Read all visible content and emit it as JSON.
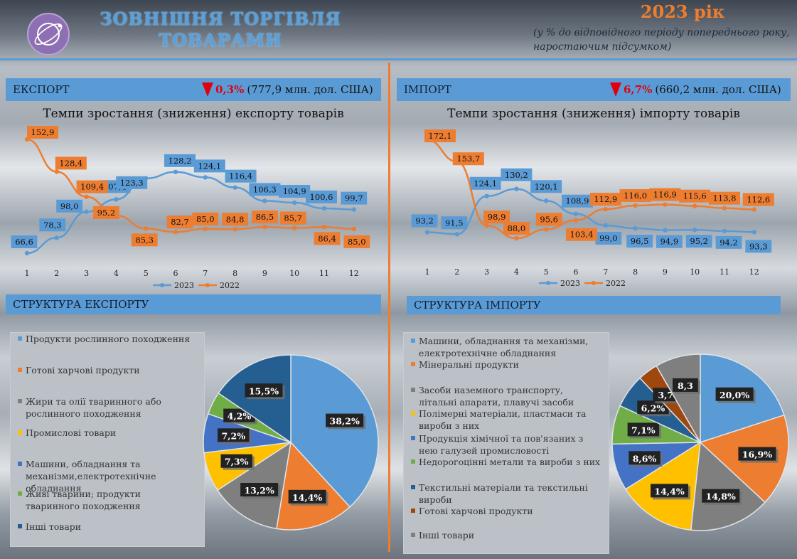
{
  "header": {
    "title_line1": "ЗОВНІШНЯ ТОРГІВЛЯ",
    "title_line2": "ТОВАРАМИ",
    "year": "2023 рік",
    "subtitle_line1": "(у % до відповідного періоду попереднього року,",
    "subtitle_line2": "наростаючим підсумком)"
  },
  "export": {
    "bar_label": "ЕКСПОРТ",
    "change_pct": "0,3%",
    "change_abs": "(777,9 млн. дол. США)",
    "chart_title": "Темпи зростання (зниження) експорту товарів",
    "structure_label": "СТРУКТУРА ЕКСПОРТУ"
  },
  "import": {
    "bar_label": "ІМПОРТ",
    "change_pct": "6,7%",
    "change_abs": "(660,2 млн. дол. США)",
    "chart_title": "Темпи зростання (зниження) імпорту товарів",
    "structure_label": "СТРУКТУРА  ІМПОРТУ"
  },
  "colors": {
    "blue": "#5b9bd5",
    "orange": "#ed7d31",
    "gray": "#7f7f7f",
    "yellow": "#ffc000",
    "royal": "#4472c4",
    "green": "#70ad47",
    "navy": "#255e91",
    "brown": "#9e480e",
    "down": "#e00010"
  },
  "chart_data": [
    {
      "type": "line",
      "title": "Темпи зростання (зниження) експорту товарів",
      "x": [
        "1",
        "2",
        "3",
        "4",
        "5",
        "6",
        "7",
        "8",
        "9",
        "10",
        "11",
        "12"
      ],
      "series": [
        {
          "name": "2023",
          "values": [
            66.6,
            78.3,
            98.0,
            107.4,
            123.3,
            128.2,
            124.1,
            116.4,
            106.3,
            104.9,
            100.6,
            99.7
          ],
          "labels": [
            "66,6",
            "78,3",
            "98,0",
            "107,4",
            "123,3",
            "128,2",
            "124,1",
            "116,4",
            "106,3",
            "104,9",
            "100,6",
            "99,7"
          ]
        },
        {
          "name": "2022",
          "values": [
            152.9,
            128.4,
            109.4,
            95.2,
            85.3,
            82.7,
            85.0,
            84.8,
            86.5,
            85.7,
            86.4,
            85.0
          ],
          "labels": [
            "152,9",
            "128,4",
            "109,4",
            "95,2",
            "85,3",
            "82,7",
            "85,0",
            "84,8",
            "86,5",
            "85,7",
            "86,4",
            "85,0"
          ]
        }
      ]
    },
    {
      "type": "line",
      "title": "Темпи зростання (зниження) імпорту товарів",
      "x": [
        "1",
        "2",
        "3",
        "4",
        "5",
        "6",
        "7",
        "8",
        "9",
        "10",
        "11",
        "12"
      ],
      "series": [
        {
          "name": "2023",
          "values": [
            93.2,
            91.5,
            124.1,
            130.2,
            120.1,
            108.9,
            99.0,
            96.5,
            94.9,
            95.2,
            94.2,
            93.3
          ],
          "labels": [
            "93,2",
            "91,5",
            "124,1",
            "130,2",
            "120,1",
            "108,9",
            "99,0",
            "96,5",
            "94,9",
            "95,2",
            "94,2",
            "93,3"
          ]
        },
        {
          "name": "2022",
          "values": [
            172.1,
            153.7,
            98.9,
            88.0,
            95.6,
            103.4,
            112.9,
            116.0,
            116.9,
            115.6,
            113.8,
            112.6
          ],
          "labels": [
            "172,1",
            "153,7",
            "98,9",
            "88,0",
            "95,6",
            "103,4",
            "112,9",
            "116,0",
            "116,9",
            "115,6",
            "113,8",
            "112,6"
          ]
        }
      ]
    },
    {
      "type": "pie",
      "title": "СТРУКТУРА ЕКСПОРТУ",
      "categories": [
        "Продукти рослинного походження",
        "Готові харчові продукти",
        "Жири та олії тваринного або рослинного походження",
        "Промислові товари",
        "Машини, обладнання та механізми,електротехнічне обладнання",
        "Живі тварини; продукти тваринного походження",
        "Інші товари"
      ],
      "values": [
        38.2,
        14.4,
        13.2,
        7.3,
        7.2,
        4.2,
        15.5
      ],
      "labels": [
        "38,2%",
        "14,4%",
        "13,2%",
        "7,3%",
        "7,2%",
        "4,2%",
        "15,5%"
      ],
      "colors": [
        "#5b9bd5",
        "#ed7d31",
        "#7f7f7f",
        "#ffc000",
        "#4472c4",
        "#70ad47",
        "#255e91"
      ]
    },
    {
      "type": "pie",
      "title": "СТРУКТУРА  ІМПОРТУ",
      "categories": [
        "Машини, обладнання та механізми, електротехнічне обладнання",
        "Мінеральні продукти",
        "Засоби наземного транспорту, літальні апарати, плавучі засоби",
        "Полімерні матеріали, пластмаси та вироби з них",
        "Продукція хімічної та пов'язаних з нею галузей промисловості",
        "Недорогоцінні метали та вироби з них",
        "Текстильні матеріали та текстильні вироби",
        "Готові харчові продукти",
        "Інші товари"
      ],
      "values": [
        20.0,
        16.9,
        14.8,
        14.4,
        8.6,
        7.1,
        6.2,
        3.7,
        8.3
      ],
      "labels": [
        "20,0%",
        "16,9%",
        "14,8%",
        "14,4%",
        "8,6%",
        "7,1%",
        "6,2%",
        "3,7",
        "8,3"
      ],
      "colors": [
        "#5b9bd5",
        "#ed7d31",
        "#7f7f7f",
        "#ffc000",
        "#4472c4",
        "#70ad47",
        "#255e91",
        "#9e480e",
        "#7f7f7f"
      ]
    }
  ]
}
